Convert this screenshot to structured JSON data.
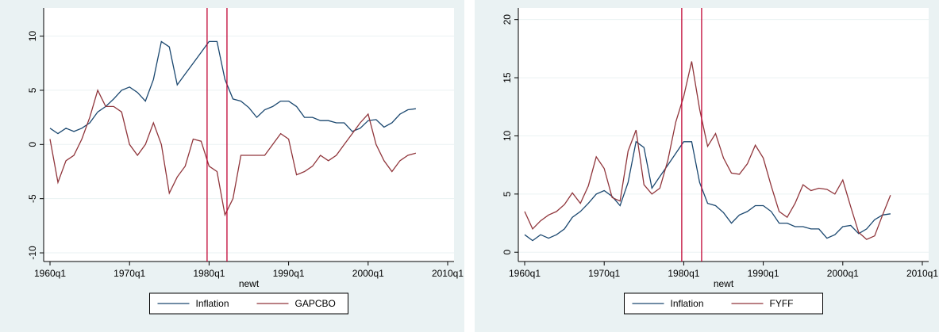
{
  "chart_data": [
    {
      "type": "line",
      "xlabel": "newt",
      "x": [
        1960,
        1961,
        1962,
        1963,
        1964,
        1965,
        1966,
        1967,
        1968,
        1969,
        1970,
        1971,
        1972,
        1973,
        1974,
        1975,
        1976,
        1977,
        1978,
        1979,
        1980,
        1981,
        1982,
        1983,
        1984,
        1985,
        1986,
        1987,
        1988,
        1989,
        1990,
        1991,
        1992,
        1993,
        1994,
        1995,
        1996,
        1997,
        1998,
        1999,
        2000,
        2001,
        2002,
        2003,
        2004,
        2005,
        2006
      ],
      "series": [
        {
          "name": "Inflation",
          "color": "#1a476f",
          "values": [
            1.5,
            1.0,
            1.5,
            1.2,
            1.5,
            2.0,
            3.0,
            3.5,
            4.2,
            5.0,
            5.3,
            4.8,
            4.0,
            6.0,
            9.5,
            9.0,
            5.5,
            6.5,
            7.5,
            8.5,
            9.5,
            9.5,
            6.0,
            4.2,
            4.0,
            3.4,
            2.5,
            3.2,
            3.5,
            4.0,
            4.0,
            3.5,
            2.5,
            2.5,
            2.2,
            2.2,
            2.0,
            2.0,
            1.2,
            1.5,
            2.2,
            2.3,
            1.6,
            2.0,
            2.8,
            3.2,
            3.3
          ]
        },
        {
          "name": "GAPCBO",
          "color": "#90353b",
          "values": [
            0.5,
            -3.5,
            -1.5,
            -1.0,
            0.5,
            2.5,
            5.0,
            3.5,
            3.5,
            3.0,
            0,
            -1.0,
            0,
            2.0,
            0,
            -4.5,
            -3.0,
            -2.0,
            0.5,
            0.3,
            -2.0,
            -2.5,
            -6.5,
            -5.0,
            -1.0,
            -1.0,
            -1.0,
            -1.0,
            0,
            1.0,
            0.5,
            -2.8,
            -2.5,
            -2.0,
            -1.0,
            -1.5,
            -1.0,
            0,
            1.0,
            2.0,
            2.8,
            0,
            -1.5,
            -2.5,
            -1.5,
            -1.0,
            -0.8
          ]
        }
      ],
      "vlines": [
        1979.75,
        1982.25
      ],
      "vline_color": "#c10534",
      "xlim": [
        1959.2,
        2010.8
      ],
      "xticks": [
        {
          "value": 1960,
          "label": "1960q1"
        },
        {
          "value": 1970,
          "label": "1970q1"
        },
        {
          "value": 1980,
          "label": "1980q1"
        },
        {
          "value": 1990,
          "label": "1990q1"
        },
        {
          "value": 2000,
          "label": "2000q1"
        },
        {
          "value": 2010,
          "label": "2010q1"
        }
      ],
      "ylim": [
        -10.8,
        12.6
      ],
      "yticks": [
        -10,
        -5,
        0,
        5,
        10
      ],
      "grid": true
    },
    {
      "type": "line",
      "xlabel": "newt",
      "x": [
        1960,
        1961,
        1962,
        1963,
        1964,
        1965,
        1966,
        1967,
        1968,
        1969,
        1970,
        1971,
        1972,
        1973,
        1974,
        1975,
        1976,
        1977,
        1978,
        1979,
        1980,
        1981,
        1982,
        1983,
        1984,
        1985,
        1986,
        1987,
        1988,
        1989,
        1990,
        1991,
        1992,
        1993,
        1994,
        1995,
        1996,
        1997,
        1998,
        1999,
        2000,
        2001,
        2002,
        2003,
        2004,
        2005,
        2006
      ],
      "series": [
        {
          "name": "Inflation",
          "color": "#1a476f",
          "values": [
            1.5,
            1.0,
            1.5,
            1.2,
            1.5,
            2.0,
            3.0,
            3.5,
            4.2,
            5.0,
            5.3,
            4.8,
            4.0,
            6.0,
            9.5,
            9.0,
            5.5,
            6.5,
            7.5,
            8.5,
            9.5,
            9.5,
            6.0,
            4.2,
            4.0,
            3.4,
            2.5,
            3.2,
            3.5,
            4.0,
            4.0,
            3.5,
            2.5,
            2.5,
            2.2,
            2.2,
            2.0,
            2.0,
            1.2,
            1.5,
            2.2,
            2.3,
            1.6,
            2.0,
            2.8,
            3.2,
            3.3
          ]
        },
        {
          "name": "FYFF",
          "color": "#90353b",
          "values": [
            3.5,
            2.0,
            2.7,
            3.2,
            3.5,
            4.1,
            5.1,
            4.2,
            5.7,
            8.2,
            7.2,
            4.7,
            4.4,
            8.7,
            10.5,
            5.8,
            5.0,
            5.5,
            7.9,
            11.2,
            13.4,
            16.4,
            12.3,
            9.1,
            10.2,
            8.1,
            6.8,
            6.7,
            7.6,
            9.2,
            8.1,
            5.7,
            3.5,
            3.0,
            4.2,
            5.8,
            5.3,
            5.5,
            5.4,
            5.0,
            6.2,
            3.9,
            1.7,
            1.1,
            1.4,
            3.2,
            4.9
          ]
        }
      ],
      "vlines": [
        1979.75,
        1982.25
      ],
      "vline_color": "#c10534",
      "xlim": [
        1959.2,
        2010.8
      ],
      "xticks": [
        {
          "value": 1960,
          "label": "1960q1"
        },
        {
          "value": 1970,
          "label": "1970q1"
        },
        {
          "value": 1980,
          "label": "1980q1"
        },
        {
          "value": 1990,
          "label": "1990q1"
        },
        {
          "value": 2000,
          "label": "2000q1"
        },
        {
          "value": 2010,
          "label": "2010q1"
        }
      ],
      "ylim": [
        -0.8,
        21
      ],
      "yticks": [
        0,
        5,
        10,
        15,
        20
      ],
      "grid": true
    }
  ]
}
